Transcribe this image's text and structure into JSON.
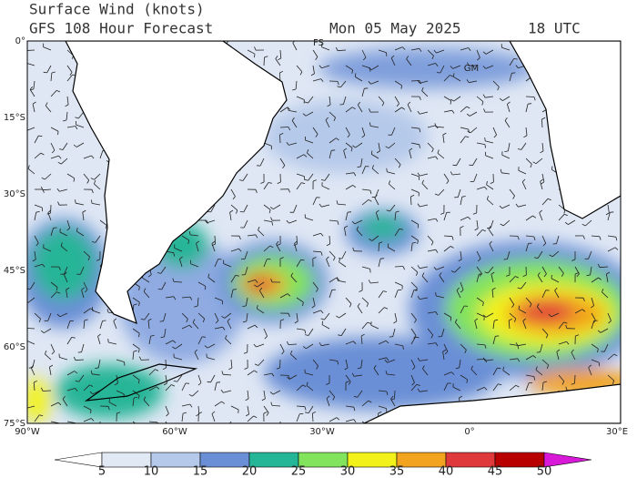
{
  "header": {
    "title": "Surface Wind (knots)",
    "subtitle": "GFS 108 Hour Forecast",
    "date": "Mon 05 May 2025",
    "time": "18 UTC"
  },
  "map": {
    "lat_labels": [
      "0°",
      "15°S",
      "30°S",
      "45°S",
      "60°S",
      "75°S"
    ],
    "lon_labels": [
      "90°W",
      "60°W",
      "30°W",
      "0°",
      "30°E"
    ],
    "place_labels": [
      "FS",
      "GM"
    ]
  },
  "colorbar": {
    "ticks": [
      5,
      10,
      15,
      20,
      25,
      30,
      35,
      40,
      45,
      50
    ],
    "colors": [
      "#ffffff",
      "#e1e9f5",
      "#b5c9ea",
      "#6b8fd6",
      "#25b597",
      "#82e35c",
      "#f2f21a",
      "#f2a31f",
      "#e0393b",
      "#b80000",
      "#d81ad8"
    ]
  }
}
